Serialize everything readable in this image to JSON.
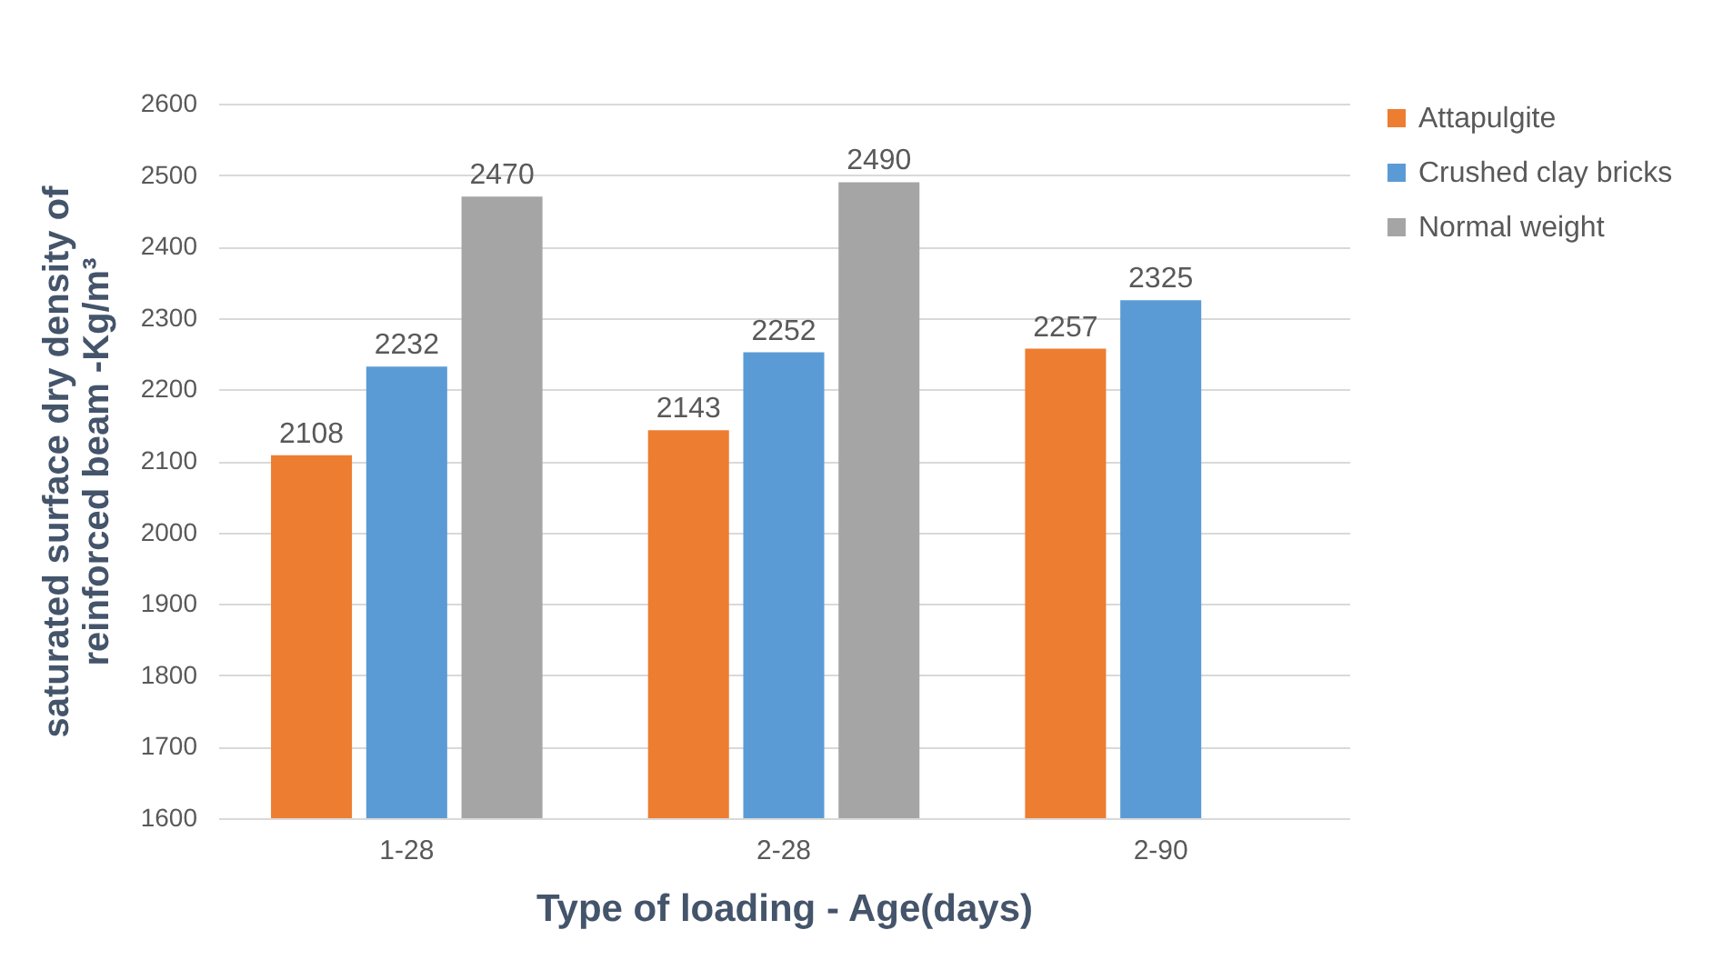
{
  "chart_data": {
    "type": "bar",
    "xlabel": "Type of loading - Age(days)",
    "ylabel": "saturated surface dry density of\nreinforced beam  -Kg/m³",
    "categories": [
      "1-28",
      "2-28",
      "2-90"
    ],
    "series": [
      {
        "name": "Attapulgite",
        "color": "#ed7d31",
        "values": [
          2108,
          2143,
          2257
        ]
      },
      {
        "name": "Crushed clay bricks",
        "color": "#5b9bd5",
        "values": [
          2232,
          2252,
          2325
        ]
      },
      {
        "name": "Normal weight",
        "color": "#a5a5a5",
        "values": [
          2470,
          2490,
          null
        ]
      }
    ],
    "ylim": [
      1600,
      2600
    ],
    "yticks": [
      1600,
      1700,
      1800,
      1900,
      2000,
      2100,
      2200,
      2300,
      2400,
      2500,
      2600
    ],
    "grid": "y",
    "legend": "right",
    "data_labels": true
  }
}
